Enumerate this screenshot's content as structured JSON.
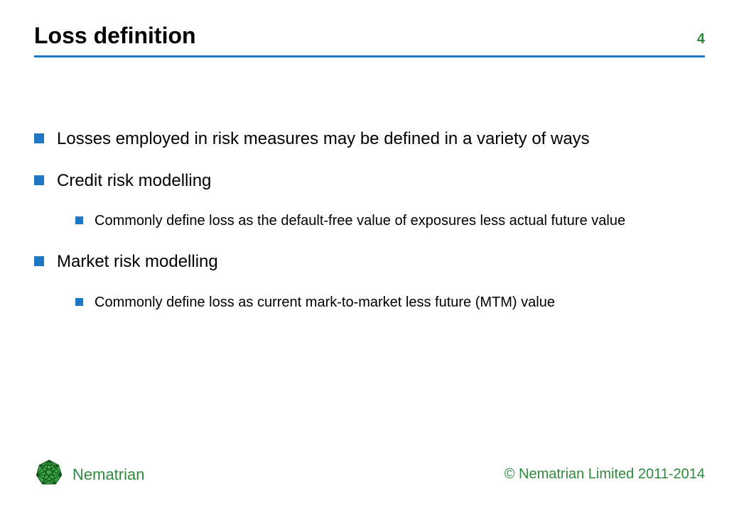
{
  "colors": {
    "rule": "#1f77c4",
    "bullet_border": "#1f77c4",
    "bullet_fill": "#1f77c4",
    "page_num": "#2e8b3d",
    "brand": "#2e8b3d",
    "copyright": "#2e8b3d",
    "text": "#000000"
  },
  "header": {
    "title": "Loss definition",
    "page_number": "4"
  },
  "bullets": [
    {
      "text": "Losses employed in risk measures may be defined in a variety of ways",
      "sub": []
    },
    {
      "text": "Credit risk modelling",
      "sub": [
        "Commonly define loss as the default-free value of exposures less actual future value"
      ]
    },
    {
      "text": "Market risk modelling",
      "sub": [
        "Commonly define loss as current mark-to-market less future (MTM) value"
      ]
    }
  ],
  "footer": {
    "brand": "Nematrian",
    "copyright": "© Nematrian Limited 2011-2014"
  },
  "logo": {
    "fill": "#3fa646",
    "stroke": "#0a4d12"
  }
}
